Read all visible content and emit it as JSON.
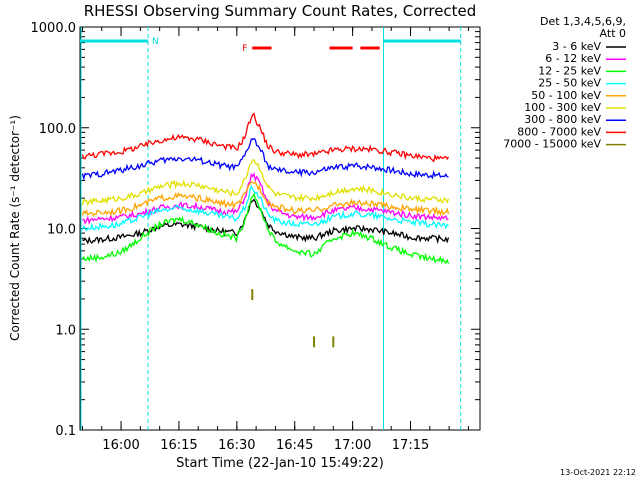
{
  "chart_data": {
    "type": "line",
    "title": "RHESSI Observing Summary Count Rates, Corrected",
    "xlabel": "Start Time (22-Jan-10 15:49:22)",
    "ylabel": "Corrected Count Rate (s⁻¹ detector⁻¹)",
    "y_scale": "log",
    "ylim": [
      0.1,
      1000
    ],
    "xlim": [
      "15:49:22",
      "17:33:00"
    ],
    "y_ticks": [
      "0.1",
      "1.0",
      "10.0",
      "100.0",
      "1000.0"
    ],
    "x_ticks": [
      "16:00",
      "16:15",
      "16:30",
      "16:45",
      "17:00",
      "17:15"
    ],
    "legend_header": [
      "Det 1,3,4,5,6,9,",
      "Att 0"
    ],
    "legend_position": "right",
    "grid": false,
    "footer_date": "13-Oct-2021 22:12",
    "markers": {
      "night_label": "N",
      "flare_label": "F",
      "night_intervals": [
        [
          "15:49:22",
          "16:07:00"
        ],
        [
          "17:08:00",
          "17:28:00"
        ]
      ],
      "flare_intervals": [
        [
          "16:34:00",
          "16:39:00"
        ],
        [
          "16:54:00",
          "17:00:00"
        ],
        [
          "17:02:00",
          "17:07:00"
        ]
      ]
    },
    "x": [
      "15:50",
      "15:55",
      "16:00",
      "16:05",
      "16:10",
      "16:15",
      "16:20",
      "16:25",
      "16:30",
      "16:32",
      "16:34",
      "16:36",
      "16:38",
      "16:40",
      "16:45",
      "16:50",
      "16:55",
      "17:00",
      "17:05",
      "17:10",
      "17:15",
      "17:20",
      "17:25"
    ],
    "series": [
      {
        "name": "3 - 6 keV",
        "color": "#000000",
        "values": [
          7.5,
          7.8,
          8.2,
          9,
          10.5,
          11,
          10.5,
          9.5,
          9,
          12,
          20,
          16,
          11,
          9.5,
          8.2,
          8,
          9.5,
          10,
          9.8,
          9,
          8.2,
          8,
          7.8
        ]
      },
      {
        "name": "6 - 12 keV",
        "color": "#ff00ff",
        "values": [
          12,
          12.5,
          13,
          14,
          16,
          17,
          16.5,
          15,
          14.5,
          20,
          35,
          28,
          18,
          15,
          13,
          13,
          15,
          16,
          15.5,
          14.5,
          13.5,
          13,
          12.5
        ]
      },
      {
        "name": "12 - 25 keV",
        "color": "#00ff00",
        "values": [
          5,
          5.2,
          5.8,
          8,
          11,
          12.5,
          11,
          9,
          8,
          12,
          22,
          16,
          10,
          7.5,
          6,
          5.5,
          8,
          9,
          8,
          6.5,
          5.5,
          5,
          4.8
        ]
      },
      {
        "name": "25 - 50 keV",
        "color": "#00ffff",
        "values": [
          10,
          10.5,
          11,
          13,
          15,
          16,
          15,
          13.5,
          12.5,
          16,
          26,
          20,
          14,
          12,
          11,
          11,
          13,
          14,
          13.5,
          12.5,
          11.5,
          11,
          10.5
        ]
      },
      {
        "name": "50 - 100 keV",
        "color": "#ffa500",
        "values": [
          14,
          14.5,
          15,
          17,
          20,
          21,
          20,
          18,
          17,
          21,
          30,
          25,
          18.5,
          16.5,
          15,
          15,
          17,
          18,
          17.5,
          16.5,
          15.5,
          15,
          14.5
        ]
      },
      {
        "name": "100 - 300 keV",
        "color": "#e0e000",
        "values": [
          18,
          19,
          20,
          22,
          26,
          28,
          27,
          24,
          22,
          30,
          50,
          40,
          26,
          22,
          20,
          20,
          23,
          25,
          24,
          22,
          20,
          19.5,
          19
        ]
      },
      {
        "name": "300 - 800 keV",
        "color": "#0000ff",
        "values": [
          33,
          35,
          38,
          42,
          47,
          50,
          48,
          43,
          40,
          52,
          80,
          62,
          42,
          38,
          36,
          36,
          40,
          42,
          41,
          38,
          35,
          34,
          33
        ]
      },
      {
        "name": "800 - 7000 keV",
        "color": "#ff0000",
        "values": [
          52,
          55,
          58,
          65,
          75,
          80,
          77,
          68,
          62,
          80,
          140,
          100,
          66,
          58,
          54,
          54,
          60,
          62,
          61,
          57,
          53,
          50,
          48
        ]
      },
      {
        "name": "7000 - 15000 keV",
        "color": "#808000",
        "values": [
          null,
          null,
          null,
          null,
          null,
          null,
          null,
          null,
          null,
          null,
          2.5,
          null,
          null,
          null,
          null,
          0.85,
          0.85,
          null,
          null,
          null,
          null,
          null,
          null
        ]
      }
    ]
  }
}
